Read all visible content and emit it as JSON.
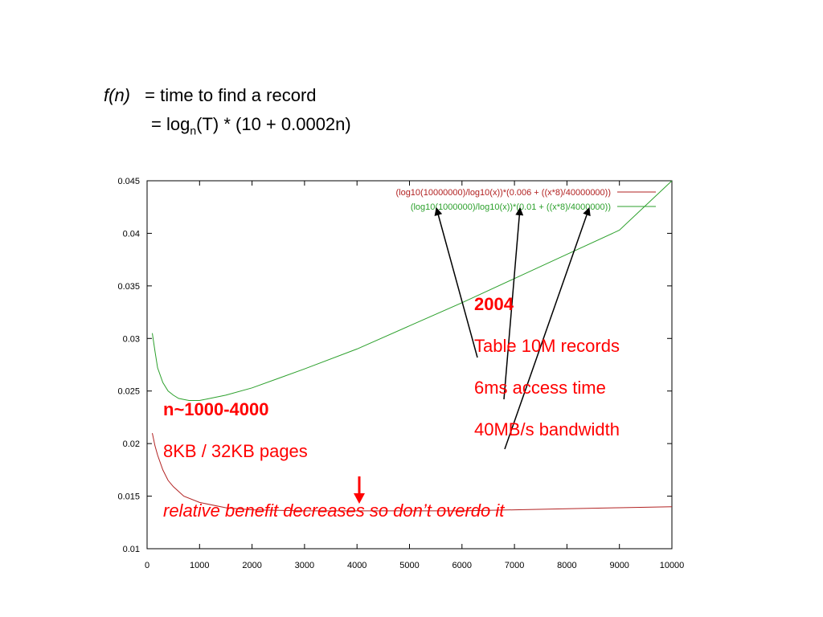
{
  "formula": {
    "fn": "f(n)",
    "line1": "= time to find a record",
    "line2_prefix": "= log",
    "line2_sub": "n",
    "line2_suffix": "(T) * (10 + 0.0002n)"
  },
  "annotations": {
    "year": "2004",
    "records": "Table 10M records",
    "access": "6ms access time",
    "bandwidth": "40MB/s bandwidth",
    "range": "n~1000-4000",
    "pages": "8KB / 32KB pages",
    "benefit": "relative benefit decreases so don’t overdo it"
  },
  "chart_data": {
    "type": "line",
    "xlim": [
      0,
      10000
    ],
    "ylim": [
      0.01,
      0.045
    ],
    "x_ticks": [
      "0",
      "1000",
      "2000",
      "3000",
      "4000",
      "5000",
      "6000",
      "7000",
      "8000",
      "9000",
      "10000"
    ],
    "y_ticks": [
      "0.01",
      "0.015",
      "0.02",
      "0.025",
      "0.03",
      "0.035",
      "0.04",
      "0.045"
    ],
    "legend_position": "top-right",
    "series": [
      {
        "name": "(log10(10000000)/log10(x))*(0.006 + ((x*8)/40000000))",
        "color": "#b22222",
        "x": [
          100,
          150,
          200,
          300,
          400,
          500,
          700,
          1000,
          1500,
          2000,
          3000,
          4000,
          5000,
          6000,
          7000,
          8000,
          9000,
          10000
        ],
        "y": [
          0.021,
          0.0198,
          0.0189,
          0.0175,
          0.0165,
          0.0159,
          0.015,
          0.0144,
          0.0139,
          0.0137,
          0.0136,
          0.0136,
          0.0136,
          0.0136,
          0.0137,
          0.0138,
          0.0139,
          0.014
        ]
      },
      {
        "name": "(log10(1000000)/log10(x))*(0.01 + ((x*8)/4000000))",
        "color": "#2ca02c",
        "x": [
          100,
          150,
          200,
          300,
          400,
          500,
          600,
          700,
          800,
          1000,
          1200,
          1500,
          2000,
          2500,
          3000,
          4000,
          5000,
          6000,
          7000,
          8000,
          9000,
          10000
        ],
        "y": [
          0.0305,
          0.0288,
          0.0272,
          0.0258,
          0.025,
          0.0246,
          0.0243,
          0.0242,
          0.0241,
          0.0241,
          0.0243,
          0.0246,
          0.0253,
          0.0262,
          0.0271,
          0.029,
          0.0312,
          0.0334,
          0.0357,
          0.038,
          0.0403,
          0.045
        ]
      }
    ]
  }
}
